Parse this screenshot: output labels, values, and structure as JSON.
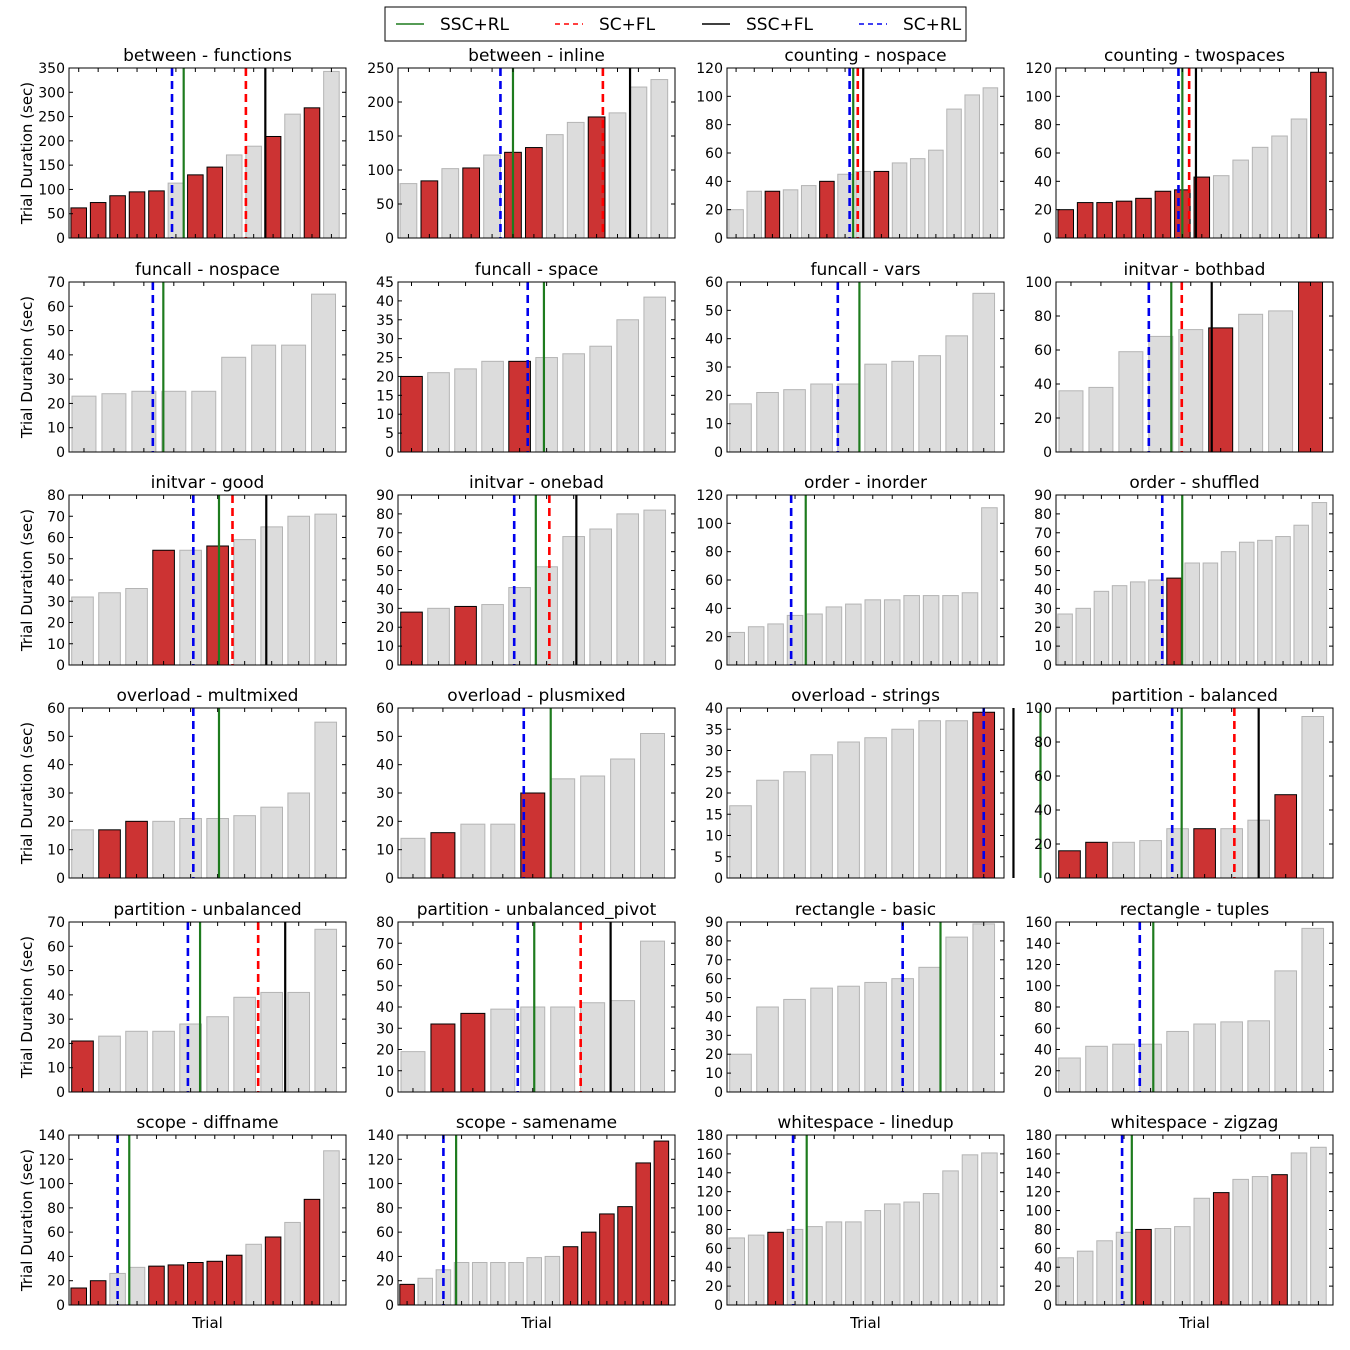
{
  "legend": [
    {
      "label": "SSC+RL",
      "color": "#1e7b1e",
      "style": "solid"
    },
    {
      "label": "SC+FL",
      "color": "#ff0000",
      "style": "dashed"
    },
    {
      "label": "SSC+FL",
      "color": "#000000",
      "style": "solid"
    },
    {
      "label": "SC+RL",
      "color": "#0000ee",
      "style": "dashed"
    }
  ],
  "colors": {
    "highlight_bar": "#cc3333",
    "highlight_edge": "#000000",
    "normal_bar": "#dcdcdc",
    "normal_edge": "#b4b4b4"
  },
  "chart_data": [
    {
      "type": "bar",
      "title": "between - functions",
      "ylabel": "Trial Duration (sec)",
      "xlabel": "",
      "ylim": [
        0,
        350
      ],
      "yticks": [
        0,
        50,
        100,
        150,
        200,
        250,
        300,
        350
      ],
      "values": [
        62,
        73,
        87,
        95,
        97,
        113,
        130,
        146,
        171,
        189,
        209,
        255,
        268,
        343
      ],
      "highlight": [
        true,
        true,
        true,
        true,
        true,
        false,
        true,
        true,
        false,
        false,
        true,
        false,
        true,
        false
      ],
      "lines": {
        "SC+RL": 5.3,
        "SSC+RL": 5.9,
        "SC+FL": 9.1,
        "SSC+FL": 10.1
      }
    },
    {
      "type": "bar",
      "title": "between - inline",
      "ylabel": "",
      "xlabel": "",
      "ylim": [
        0,
        250
      ],
      "yticks": [
        0,
        50,
        100,
        150,
        200,
        250
      ],
      "values": [
        80,
        84,
        102,
        103,
        122,
        126,
        133,
        152,
        170,
        178,
        184,
        222,
        233
      ],
      "highlight": [
        false,
        true,
        false,
        true,
        false,
        true,
        true,
        false,
        false,
        true,
        false,
        false,
        false
      ],
      "lines": {
        "SC+RL": 4.9,
        "SSC+RL": 5.5,
        "SC+FL": 9.8,
        "SSC+FL": 11.1
      }
    },
    {
      "type": "bar",
      "title": "counting - nospace",
      "ylabel": "",
      "xlabel": "",
      "ylim": [
        0,
        120
      ],
      "yticks": [
        0,
        20,
        40,
        60,
        80,
        100,
        120
      ],
      "values": [
        20,
        33,
        33,
        34,
        37,
        40,
        45,
        47,
        47,
        53,
        56,
        62,
        91,
        101,
        106
      ],
      "highlight": [
        false,
        false,
        true,
        false,
        false,
        true,
        false,
        false,
        true,
        false,
        false,
        false,
        false,
        false,
        false
      ],
      "lines": {
        "SC+RL": 6.75,
        "SSC+RL": 6.95,
        "SC+FL": 7.2,
        "SSC+FL": 7.5
      }
    },
    {
      "type": "bar",
      "title": "counting - twospaces",
      "ylabel": "",
      "xlabel": "",
      "ylim": [
        0,
        120
      ],
      "yticks": [
        0,
        20,
        40,
        60,
        80,
        100,
        120
      ],
      "values": [
        20,
        25,
        25,
        26,
        28,
        33,
        34,
        43,
        44,
        55,
        64,
        72,
        84,
        117
      ],
      "highlight": [
        true,
        true,
        true,
        true,
        true,
        true,
        true,
        true,
        false,
        false,
        false,
        false,
        false,
        true
      ],
      "lines": {
        "SC+RL": 6.3,
        "SSC+RL": 6.5,
        "SC+FL": 6.85,
        "SSC+FL": 7.2
      }
    },
    {
      "type": "bar",
      "title": "funcall - nospace",
      "ylabel": "Trial Duration (sec)",
      "xlabel": "",
      "ylim": [
        0,
        70
      ],
      "yticks": [
        0,
        10,
        20,
        30,
        40,
        50,
        60,
        70
      ],
      "values": [
        23,
        24,
        25,
        25,
        25,
        39,
        44,
        44,
        65
      ],
      "highlight": [
        false,
        false,
        false,
        false,
        false,
        false,
        false,
        false,
        false
      ],
      "lines": {
        "SC+RL": 2.8,
        "SSC+RL": 3.15
      }
    },
    {
      "type": "bar",
      "title": "funcall - space",
      "ylabel": "",
      "xlabel": "",
      "ylim": [
        0,
        45
      ],
      "yticks": [
        0,
        5,
        10,
        15,
        20,
        25,
        30,
        35,
        40,
        45
      ],
      "values": [
        20,
        21,
        22,
        24,
        24,
        25,
        26,
        28,
        35,
        41
      ],
      "highlight": [
        true,
        false,
        false,
        false,
        true,
        false,
        false,
        false,
        false,
        false
      ],
      "lines": {
        "SC+RL": 4.8,
        "SSC+RL": 5.4
      }
    },
    {
      "type": "bar",
      "title": "funcall - vars",
      "ylabel": "",
      "xlabel": "",
      "ylim": [
        0,
        60
      ],
      "yticks": [
        0,
        10,
        20,
        30,
        40,
        50,
        60
      ],
      "values": [
        17,
        21,
        22,
        24,
        24,
        31,
        32,
        34,
        41,
        56
      ],
      "highlight": [
        false,
        false,
        false,
        false,
        false,
        false,
        false,
        false,
        false,
        false
      ],
      "lines": {
        "SC+RL": 4.1,
        "SSC+RL": 4.9
      }
    },
    {
      "type": "bar",
      "title": "initvar - bothbad",
      "ylabel": "",
      "xlabel": "",
      "ylim": [
        0,
        100
      ],
      "yticks": [
        0,
        20,
        40,
        60,
        80,
        100
      ],
      "values": [
        36,
        38,
        59,
        68,
        72,
        73,
        81,
        83,
        100
      ],
      "highlight": [
        false,
        false,
        false,
        false,
        false,
        true,
        false,
        false,
        true
      ],
      "lines": {
        "SC+RL": 3.1,
        "SSC+RL": 3.85,
        "SC+FL": 4.2,
        "SSC+FL": 5.2
      }
    },
    {
      "type": "bar",
      "title": "initvar - good",
      "ylabel": "Trial Duration (sec)",
      "xlabel": "",
      "ylim": [
        0,
        80
      ],
      "yticks": [
        0,
        10,
        20,
        30,
        40,
        50,
        60,
        70,
        80
      ],
      "values": [
        32,
        34,
        36,
        54,
        54,
        56,
        59,
        65,
        70,
        71
      ],
      "highlight": [
        false,
        false,
        false,
        true,
        false,
        true,
        false,
        false,
        false,
        false
      ],
      "lines": {
        "SC+RL": 4.6,
        "SSC+RL": 5.55,
        "SC+FL": 6.05,
        "SSC+FL": 7.3
      }
    },
    {
      "type": "bar",
      "title": "initvar - onebad",
      "ylabel": "",
      "xlabel": "",
      "ylim": [
        0,
        90
      ],
      "yticks": [
        0,
        10,
        20,
        30,
        40,
        50,
        60,
        70,
        80,
        90
      ],
      "values": [
        28,
        30,
        31,
        32,
        41,
        52,
        68,
        72,
        80,
        82
      ],
      "highlight": [
        true,
        false,
        true,
        false,
        false,
        false,
        false,
        false,
        false,
        false
      ],
      "lines": {
        "SC+RL": 4.3,
        "SSC+RL": 5.1,
        "SC+FL": 5.6,
        "SSC+FL": 6.6
      }
    },
    {
      "type": "bar",
      "title": "order - inorder",
      "ylabel": "",
      "xlabel": "",
      "ylim": [
        0,
        120
      ],
      "yticks": [
        0,
        20,
        40,
        60,
        80,
        100,
        120
      ],
      "values": [
        23,
        27,
        29,
        35,
        36,
        41,
        43,
        46,
        46,
        49,
        49,
        49,
        51,
        111
      ],
      "highlight": [
        false,
        false,
        false,
        false,
        false,
        false,
        false,
        false,
        false,
        false,
        false,
        false,
        false,
        false
      ],
      "lines": {
        "SC+RL": 3.3,
        "SSC+RL": 4.05
      }
    },
    {
      "type": "bar",
      "title": "order - shuffled",
      "ylabel": "",
      "xlabel": "",
      "ylim": [
        0,
        90
      ],
      "yticks": [
        0,
        10,
        20,
        30,
        40,
        50,
        60,
        70,
        80,
        90
      ],
      "values": [
        27,
        30,
        39,
        42,
        44,
        45,
        46,
        54,
        54,
        60,
        65,
        66,
        68,
        74,
        86
      ],
      "highlight": [
        false,
        false,
        false,
        false,
        false,
        false,
        true,
        false,
        false,
        false,
        false,
        false,
        false,
        false,
        false
      ],
      "lines": {
        "SC+RL": 5.85,
        "SSC+RL": 6.95
      }
    },
    {
      "type": "bar",
      "title": "overload - multmixed",
      "ylabel": "Trial Duration (sec)",
      "xlabel": "",
      "ylim": [
        0,
        60
      ],
      "yticks": [
        0,
        10,
        20,
        30,
        40,
        50,
        60
      ],
      "values": [
        17,
        17,
        20,
        20,
        21,
        21,
        22,
        25,
        30,
        55
      ],
      "highlight": [
        false,
        true,
        true,
        false,
        false,
        false,
        false,
        false,
        false,
        false
      ],
      "lines": {
        "SC+RL": 4.6,
        "SSC+RL": 5.55
      }
    },
    {
      "type": "bar",
      "title": "overload - plusmixed",
      "ylabel": "",
      "xlabel": "",
      "ylim": [
        0,
        60
      ],
      "yticks": [
        0,
        10,
        20,
        30,
        40,
        50,
        60
      ],
      "values": [
        14,
        16,
        19,
        19,
        30,
        35,
        36,
        42,
        51
      ],
      "highlight": [
        false,
        true,
        false,
        false,
        true,
        false,
        false,
        false,
        false
      ],
      "lines": {
        "SC+RL": 4.2,
        "SSC+RL": 5.1
      }
    },
    {
      "type": "bar",
      "title": "overload - strings",
      "ylabel": "",
      "xlabel": "",
      "ylim": [
        0,
        40
      ],
      "yticks": [
        0,
        5,
        10,
        15,
        20,
        25,
        30,
        35,
        40
      ],
      "values": [
        17,
        23,
        25,
        29,
        32,
        33,
        35,
        37,
        37,
        39
      ],
      "highlight": [
        false,
        false,
        false,
        false,
        false,
        false,
        false,
        false,
        false,
        true
      ],
      "lines": {
        "SC+RL": 9.5,
        "SSC+FL": 10.6,
        "SSC+RL": 11.6
      }
    },
    {
      "type": "bar",
      "title": "partition - balanced",
      "ylabel": "",
      "xlabel": "",
      "ylim": [
        0,
        100
      ],
      "yticks": [
        0,
        20,
        40,
        60,
        80,
        100
      ],
      "values": [
        16,
        21,
        21,
        22,
        29,
        29,
        29,
        34,
        49,
        95
      ],
      "highlight": [
        true,
        true,
        false,
        false,
        false,
        true,
        false,
        false,
        true,
        false
      ],
      "lines": {
        "SC+RL": 4.3,
        "SSC+RL": 4.65,
        "SC+FL": 6.6,
        "SSC+FL": 7.5
      }
    },
    {
      "type": "bar",
      "title": "partition - unbalanced",
      "ylabel": "Trial Duration (sec)",
      "xlabel": "",
      "ylim": [
        0,
        70
      ],
      "yticks": [
        0,
        10,
        20,
        30,
        40,
        50,
        60,
        70
      ],
      "values": [
        21,
        23,
        25,
        25,
        28,
        31,
        39,
        41,
        41,
        67
      ],
      "highlight": [
        true,
        false,
        false,
        false,
        false,
        false,
        false,
        false,
        false,
        false
      ],
      "lines": {
        "SC+RL": 4.4,
        "SSC+RL": 4.85,
        "SC+FL": 7.0,
        "SSC+FL": 8.0
      }
    },
    {
      "type": "bar",
      "title": "partition - unbalanced_pivot",
      "ylabel": "",
      "xlabel": "",
      "ylim": [
        0,
        80
      ],
      "yticks": [
        0,
        10,
        20,
        30,
        40,
        50,
        60,
        70,
        80
      ],
      "values": [
        19,
        32,
        37,
        39,
        40,
        40,
        42,
        43,
        71
      ],
      "highlight": [
        false,
        true,
        true,
        false,
        false,
        false,
        false,
        false,
        false
      ],
      "lines": {
        "SC+RL": 4.0,
        "SSC+RL": 4.55,
        "SC+FL": 6.1,
        "SSC+FL": 7.1
      }
    },
    {
      "type": "bar",
      "title": "rectangle - basic",
      "ylabel": "",
      "xlabel": "",
      "ylim": [
        0,
        90
      ],
      "yticks": [
        0,
        10,
        20,
        30,
        40,
        50,
        60,
        70,
        80,
        90
      ],
      "values": [
        20,
        45,
        49,
        55,
        56,
        58,
        60,
        66,
        82,
        89
      ],
      "highlight": [
        false,
        false,
        false,
        false,
        false,
        false,
        false,
        false,
        false,
        false
      ],
      "lines": {
        "SC+RL": 6.5,
        "SSC+RL": 7.9
      }
    },
    {
      "type": "bar",
      "title": "rectangle - tuples",
      "ylabel": "",
      "xlabel": "",
      "ylim": [
        0,
        160
      ],
      "yticks": [
        0,
        20,
        40,
        60,
        80,
        100,
        120,
        140,
        160
      ],
      "values": [
        32,
        43,
        45,
        45,
        57,
        64,
        66,
        67,
        114,
        154
      ],
      "highlight": [
        false,
        false,
        false,
        false,
        false,
        false,
        false,
        false,
        false,
        false
      ],
      "lines": {
        "SC+RL": 3.1,
        "SSC+RL": 3.6
      }
    },
    {
      "type": "bar",
      "title": "scope - diffname",
      "ylabel": "Trial Duration (sec)",
      "xlabel": "Trial",
      "ylim": [
        0,
        140
      ],
      "yticks": [
        0,
        20,
        40,
        60,
        80,
        100,
        120,
        140
      ],
      "values": [
        14,
        20,
        26,
        31,
        32,
        33,
        35,
        36,
        41,
        50,
        56,
        68,
        87,
        127
      ],
      "highlight": [
        true,
        true,
        false,
        false,
        true,
        true,
        true,
        true,
        true,
        false,
        true,
        false,
        true,
        false
      ],
      "lines": {
        "SC+RL": 2.5,
        "SSC+RL": 3.1
      }
    },
    {
      "type": "bar",
      "title": "scope - samename",
      "ylabel": "",
      "xlabel": "Trial",
      "ylim": [
        0,
        140
      ],
      "yticks": [
        0,
        20,
        40,
        60,
        80,
        100,
        120,
        140
      ],
      "values": [
        17,
        22,
        29,
        35,
        35,
        35,
        35,
        39,
        40,
        48,
        60,
        75,
        81,
        117,
        135
      ],
      "highlight": [
        true,
        false,
        false,
        false,
        false,
        false,
        false,
        false,
        false,
        true,
        true,
        true,
        true,
        true,
        true
      ],
      "lines": {
        "SC+RL": 2.5,
        "SSC+RL": 3.2
      }
    },
    {
      "type": "bar",
      "title": "whitespace - linedup",
      "ylabel": "",
      "xlabel": "Trial",
      "ylim": [
        0,
        180
      ],
      "yticks": [
        0,
        20,
        40,
        60,
        80,
        100,
        120,
        140,
        160,
        180
      ],
      "values": [
        71,
        74,
        77,
        80,
        83,
        88,
        88,
        100,
        107,
        109,
        118,
        142,
        159,
        161
      ],
      "highlight": [
        false,
        false,
        true,
        false,
        false,
        false,
        false,
        false,
        false,
        false,
        false,
        false,
        false,
        false
      ],
      "lines": {
        "SC+RL": 3.4,
        "SSC+RL": 4.1
      }
    },
    {
      "type": "bar",
      "title": "whitespace - zigzag",
      "ylabel": "",
      "xlabel": "Trial",
      "ylim": [
        0,
        180
      ],
      "yticks": [
        0,
        20,
        40,
        60,
        80,
        100,
        120,
        140,
        160,
        180
      ],
      "values": [
        50,
        57,
        68,
        77,
        80,
        81,
        83,
        113,
        119,
        133,
        136,
        138,
        161,
        167
      ],
      "highlight": [
        false,
        false,
        false,
        false,
        true,
        false,
        false,
        false,
        true,
        false,
        false,
        true,
        false,
        false
      ],
      "lines": {
        "SC+RL": 3.4,
        "SSC+RL": 3.9
      }
    }
  ]
}
